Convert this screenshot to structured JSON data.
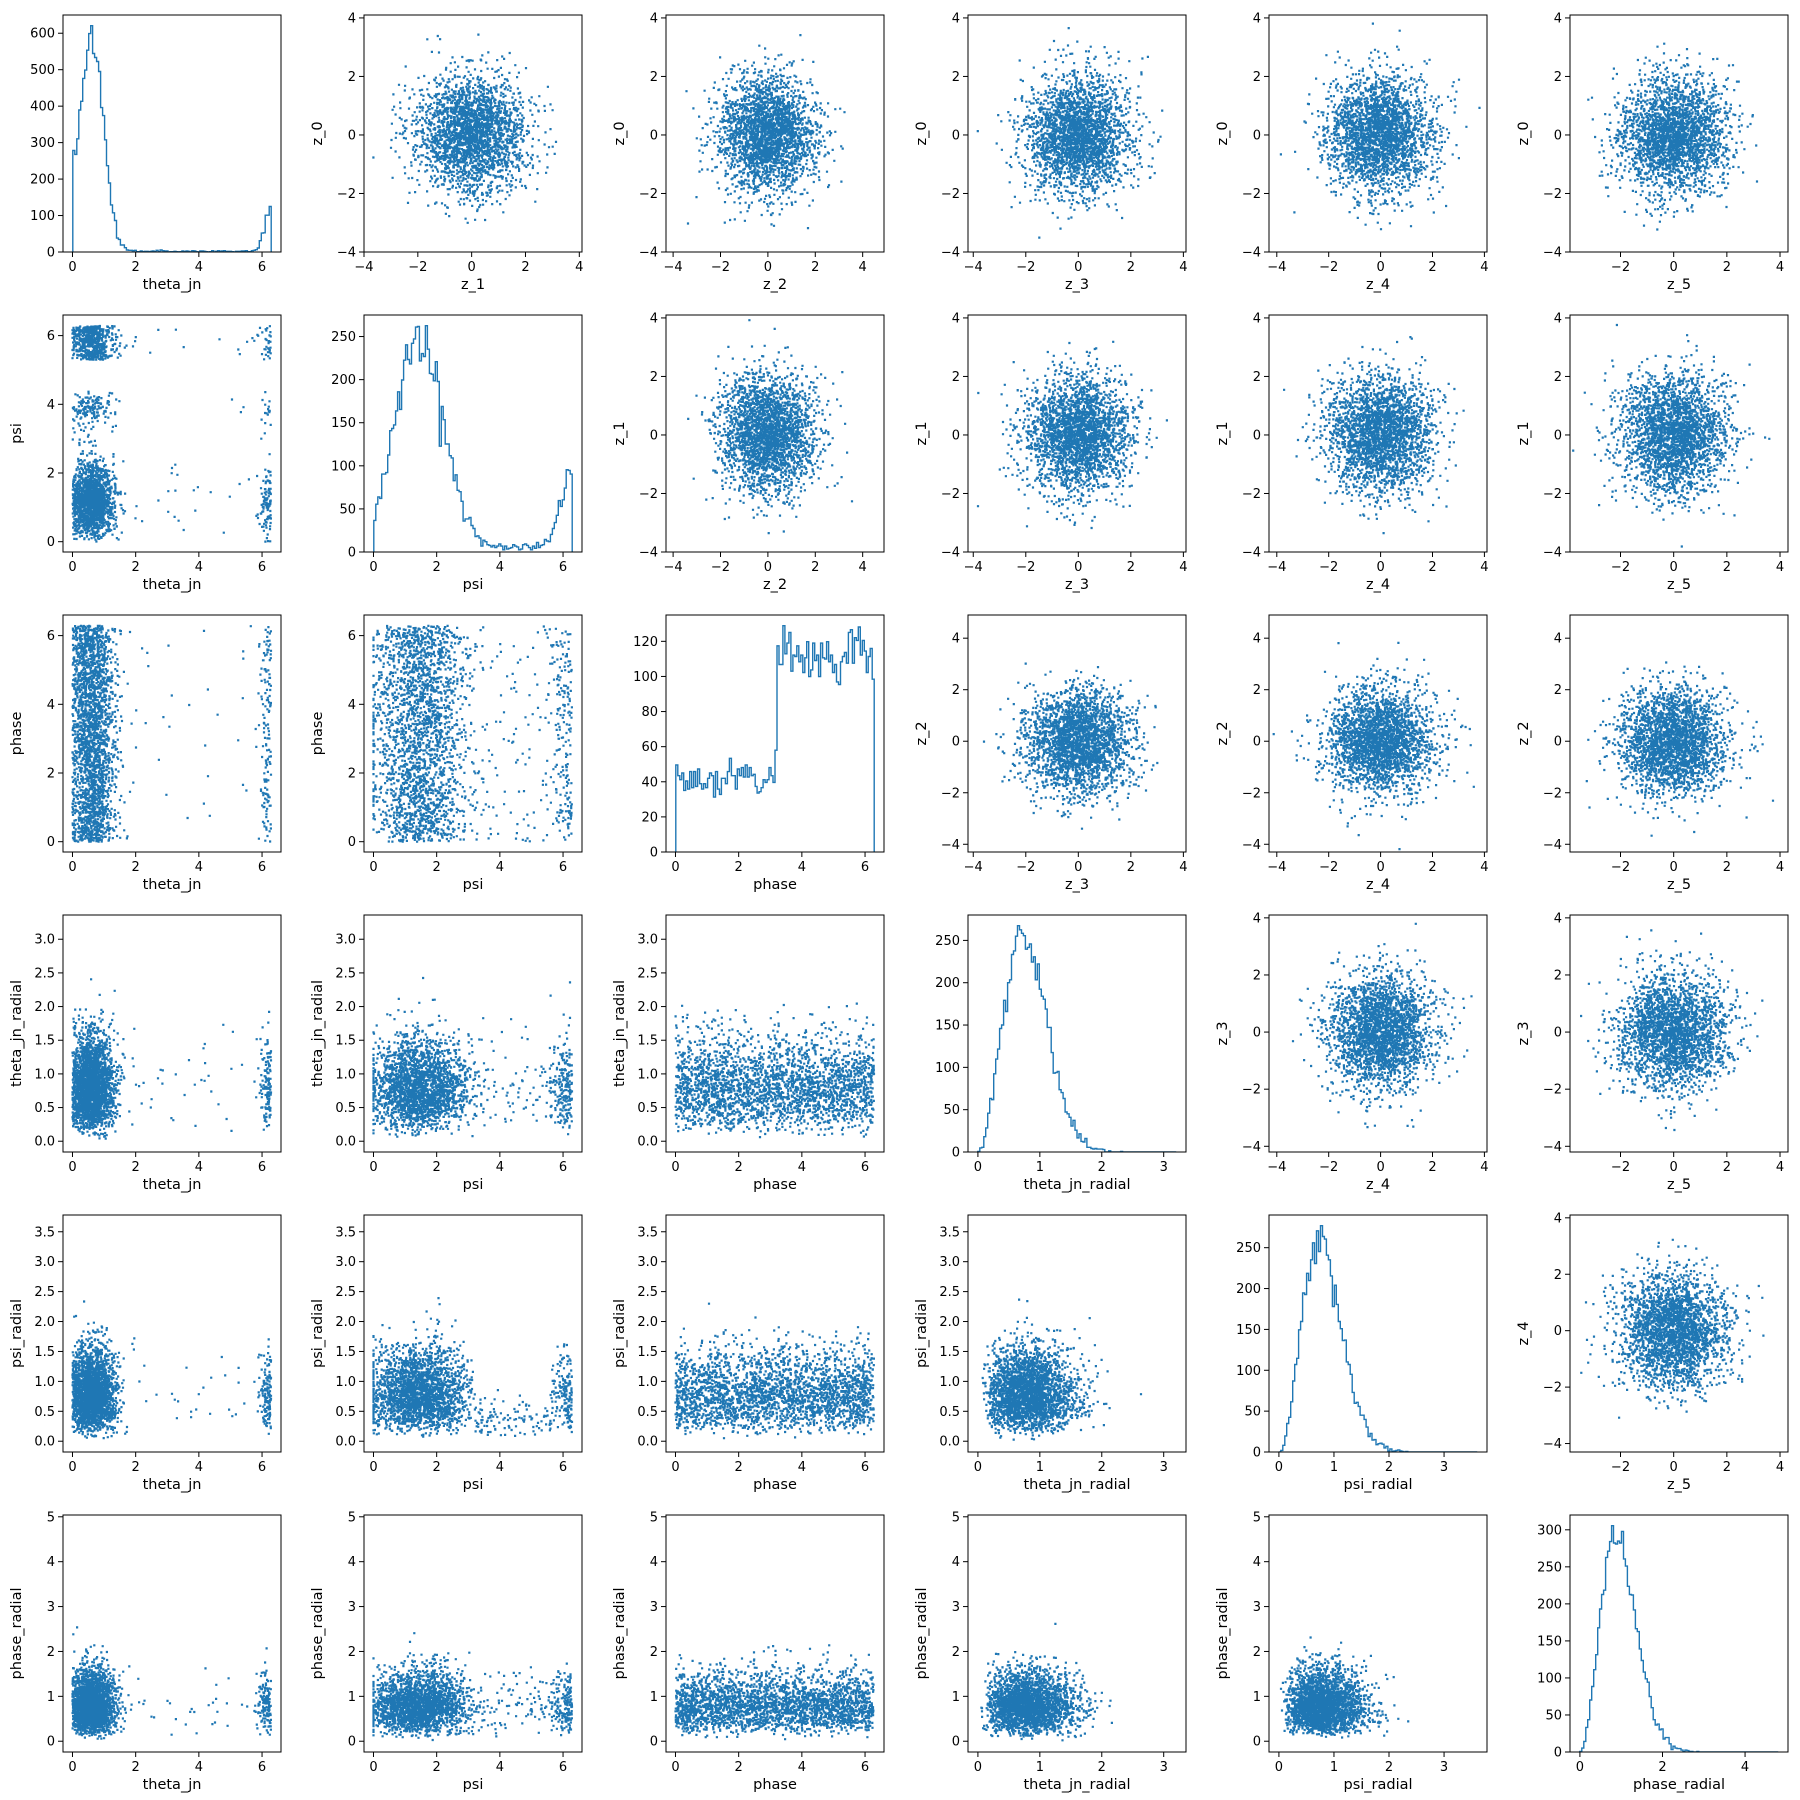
{
  "chart_data": {
    "type": "scatter",
    "layout": "corner-pair-grid",
    "marker_color": "#1f77b4",
    "rows": 6,
    "cols": 6,
    "params": {
      "theta_jn": {
        "label": "theta_jn",
        "lim": [
          -0.3,
          6.6
        ],
        "ticks": [
          0,
          2,
          4,
          6
        ],
        "tick_labels": [
          "0",
          "2",
          "4",
          "6"
        ]
      },
      "psi": {
        "label": "psi",
        "lim": [
          -0.3,
          6.6
        ],
        "ticks": [
          0,
          2,
          4,
          6
        ],
        "tick_labels": [
          "0",
          "2",
          "4",
          "6"
        ]
      },
      "phase": {
        "label": "phase",
        "lim": [
          -0.3,
          6.6
        ],
        "ticks": [
          0,
          2,
          4,
          6
        ],
        "tick_labels": [
          "0",
          "2",
          "4",
          "6"
        ]
      },
      "theta_jn_radial": {
        "label": "theta_jn_radial",
        "lim": [
          -0.16,
          3.36
        ],
        "ticks": [
          0,
          1,
          2,
          3
        ],
        "tick_labels": [
          "0",
          "1",
          "2",
          "3"
        ],
        "yticks": [
          0,
          0.5,
          1,
          1.5,
          2,
          2.5,
          3
        ],
        "ytick_labels": [
          "0.0",
          "0.5",
          "1.0",
          "1.5",
          "2.0",
          "2.5",
          "3.0"
        ]
      },
      "psi_radial": {
        "label": "psi_radial",
        "lim": [
          -0.18,
          3.78
        ],
        "ticks": [
          0,
          1,
          2,
          3
        ],
        "tick_labels": [
          "0",
          "1",
          "2",
          "3"
        ],
        "yticks": [
          0,
          0.5,
          1,
          1.5,
          2,
          2.5,
          3,
          3.5
        ],
        "ytick_labels": [
          "0.0",
          "0.5",
          "1.0",
          "1.5",
          "2.0",
          "2.5",
          "3.0",
          "3.5"
        ]
      },
      "phase_radial": {
        "label": "phase_radial",
        "lim": [
          -0.24,
          5.04
        ],
        "ticks": [
          0,
          2,
          4
        ],
        "tick_labels": [
          "0",
          "2",
          "4"
        ],
        "yticks": [
          0,
          1,
          2,
          3,
          4,
          5
        ],
        "ytick_labels": [
          "0",
          "1",
          "2",
          "3",
          "4",
          "5"
        ]
      },
      "z_0": {
        "label": "z_0",
        "lim": [
          -4,
          4.1
        ],
        "ticks": [
          -4,
          -2,
          0,
          2,
          4
        ],
        "tick_labels": [
          "−4",
          "−2",
          "0",
          "2",
          "4"
        ]
      },
      "z_1": {
        "label": "z_1",
        "lim": [
          -4,
          4.1
        ],
        "ticks": [
          -4,
          -2,
          0,
          2,
          4
        ],
        "tick_labels": [
          "−4",
          "−2",
          "0",
          "2",
          "4"
        ]
      },
      "z_2": {
        "label": "z_2",
        "lim": [
          -4.3,
          4.9
        ],
        "ticks": [
          -4,
          -2,
          0,
          2,
          4
        ],
        "tick_labels": [
          "−4",
          "−2",
          "0",
          "2",
          "4"
        ]
      },
      "z_3": {
        "label": "z_3",
        "lim": [
          -4.2,
          4.1
        ],
        "ticks": [
          -4,
          -2,
          0,
          2,
          4
        ],
        "tick_labels": [
          "−4",
          "−2",
          "0",
          "2",
          "4"
        ]
      },
      "z_4": {
        "label": "z_4",
        "lim": [
          -4.3,
          4.1
        ],
        "ticks": [
          -4,
          -2,
          0,
          2,
          4
        ],
        "tick_labels": [
          "−4",
          "−2",
          "0",
          "2",
          "4"
        ]
      },
      "z_5": {
        "label": "z_5",
        "lim": [
          -3.9,
          4.3
        ],
        "ticks": [
          -2,
          0,
          2,
          4
        ],
        "tick_labels": [
          "−2",
          "0",
          "2",
          "4"
        ]
      }
    },
    "panels": [
      {
        "row": 0,
        "col": 0,
        "kind": "hist",
        "param": "theta_jn",
        "ylim": [
          0,
          650
        ],
        "yticks": [
          0,
          100,
          200,
          300,
          400,
          500,
          600
        ],
        "dist": "theta_jn"
      },
      {
        "row": 0,
        "col": 1,
        "kind": "scatter",
        "x": "z_1",
        "y": "z_0",
        "dist": "gauss"
      },
      {
        "row": 0,
        "col": 2,
        "kind": "scatter",
        "x": "z_2",
        "y": "z_0",
        "dist": "gauss"
      },
      {
        "row": 0,
        "col": 3,
        "kind": "scatter",
        "x": "z_3",
        "y": "z_0",
        "dist": "gauss"
      },
      {
        "row": 0,
        "col": 4,
        "kind": "scatter",
        "x": "z_4",
        "y": "z_0",
        "dist": "gauss"
      },
      {
        "row": 0,
        "col": 5,
        "kind": "scatter",
        "x": "z_5",
        "y": "z_0",
        "dist": "gauss"
      },
      {
        "row": 1,
        "col": 0,
        "kind": "scatter",
        "x": "theta_jn",
        "y": "psi",
        "dist": "theta_psi"
      },
      {
        "row": 1,
        "col": 1,
        "kind": "hist",
        "param": "psi",
        "ylim": [
          0,
          275
        ],
        "yticks": [
          0,
          50,
          100,
          150,
          200,
          250
        ],
        "dist": "psi"
      },
      {
        "row": 1,
        "col": 2,
        "kind": "scatter",
        "x": "z_2",
        "y": "z_1",
        "dist": "gauss"
      },
      {
        "row": 1,
        "col": 3,
        "kind": "scatter",
        "x": "z_3",
        "y": "z_1",
        "dist": "gauss"
      },
      {
        "row": 1,
        "col": 4,
        "kind": "scatter",
        "x": "z_4",
        "y": "z_1",
        "dist": "gauss"
      },
      {
        "row": 1,
        "col": 5,
        "kind": "scatter",
        "x": "z_5",
        "y": "z_1",
        "dist": "gauss"
      },
      {
        "row": 2,
        "col": 0,
        "kind": "scatter",
        "x": "theta_jn",
        "y": "phase",
        "dist": "theta_phase"
      },
      {
        "row": 2,
        "col": 1,
        "kind": "scatter",
        "x": "psi",
        "y": "phase",
        "dist": "psi_phase"
      },
      {
        "row": 2,
        "col": 2,
        "kind": "hist",
        "param": "phase",
        "ylim": [
          0,
          135
        ],
        "yticks": [
          0,
          20,
          40,
          60,
          80,
          100,
          120
        ],
        "dist": "phase"
      },
      {
        "row": 2,
        "col": 3,
        "kind": "scatter",
        "x": "z_3",
        "y": "z_2",
        "dist": "gauss"
      },
      {
        "row": 2,
        "col": 4,
        "kind": "scatter",
        "x": "z_4",
        "y": "z_2",
        "dist": "gauss"
      },
      {
        "row": 2,
        "col": 5,
        "kind": "scatter",
        "x": "z_5",
        "y": "z_2",
        "dist": "gauss"
      },
      {
        "row": 3,
        "col": 0,
        "kind": "scatter",
        "x": "theta_jn",
        "y": "theta_jn_radial",
        "dist": "theta_radial"
      },
      {
        "row": 3,
        "col": 1,
        "kind": "scatter",
        "x": "psi",
        "y": "theta_jn_radial",
        "dist": "psi_radial_y"
      },
      {
        "row": 3,
        "col": 2,
        "kind": "scatter",
        "x": "phase",
        "y": "theta_jn_radial",
        "dist": "phase_radial_y"
      },
      {
        "row": 3,
        "col": 3,
        "kind": "hist",
        "param": "theta_jn_radial",
        "ylim": [
          0,
          280
        ],
        "yticks": [
          0,
          50,
          100,
          150,
          200,
          250
        ],
        "dist": "chi_tr"
      },
      {
        "row": 3,
        "col": 4,
        "kind": "scatter",
        "x": "z_4",
        "y": "z_3",
        "dist": "gauss"
      },
      {
        "row": 3,
        "col": 5,
        "kind": "scatter",
        "x": "z_5",
        "y": "z_3",
        "dist": "gauss"
      },
      {
        "row": 4,
        "col": 0,
        "kind": "scatter",
        "x": "theta_jn",
        "y": "psi_radial",
        "dist": "theta_radial"
      },
      {
        "row": 4,
        "col": 1,
        "kind": "scatter",
        "x": "psi",
        "y": "psi_radial",
        "dist": "psi_psiradial"
      },
      {
        "row": 4,
        "col": 2,
        "kind": "scatter",
        "x": "phase",
        "y": "psi_radial",
        "dist": "phase_radial_y"
      },
      {
        "row": 4,
        "col": 3,
        "kind": "scatter",
        "x": "theta_jn_radial",
        "y": "psi_radial",
        "dist": "chi_chi"
      },
      {
        "row": 4,
        "col": 4,
        "kind": "hist",
        "param": "psi_radial",
        "ylim": [
          0,
          290
        ],
        "yticks": [
          0,
          50,
          100,
          150,
          200,
          250
        ],
        "dist": "chi_pr"
      },
      {
        "row": 4,
        "col": 5,
        "kind": "scatter",
        "x": "z_5",
        "y": "z_4",
        "dist": "gauss"
      },
      {
        "row": 5,
        "col": 0,
        "kind": "scatter",
        "x": "theta_jn",
        "y": "phase_radial",
        "dist": "theta_radial"
      },
      {
        "row": 5,
        "col": 1,
        "kind": "scatter",
        "x": "psi",
        "y": "phase_radial",
        "dist": "psi_radial_y"
      },
      {
        "row": 5,
        "col": 2,
        "kind": "scatter",
        "x": "phase",
        "y": "phase_radial",
        "dist": "phase_radial_y"
      },
      {
        "row": 5,
        "col": 3,
        "kind": "scatter",
        "x": "theta_jn_radial",
        "y": "phase_radial",
        "dist": "chi_chi"
      },
      {
        "row": 5,
        "col": 4,
        "kind": "scatter",
        "x": "psi_radial",
        "y": "phase_radial",
        "dist": "chi_chi"
      },
      {
        "row": 5,
        "col": 5,
        "kind": "hist",
        "param": "phase_radial",
        "ylim": [
          0,
          320
        ],
        "yticks": [
          0,
          50,
          100,
          150,
          200,
          250,
          300
        ],
        "dist": "chi_phr"
      }
    ]
  }
}
